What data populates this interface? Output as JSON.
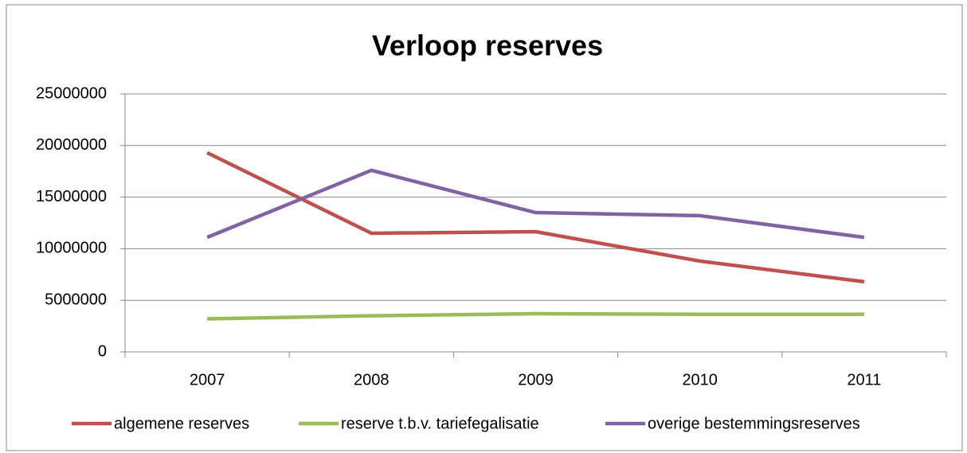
{
  "chart_data": {
    "type": "line",
    "title": "Verloop reserves",
    "categories": [
      "2007",
      "2008",
      "2009",
      "2010",
      "2011"
    ],
    "series": [
      {
        "name": "algemene reserves",
        "color": "#c0504d",
        "values": [
          19300000,
          11500000,
          11650000,
          8800000,
          6800000
        ]
      },
      {
        "name": "reserve t.b.v. tariefegalisatie",
        "color": "#9bbb59",
        "values": [
          3200000,
          3500000,
          3700000,
          3650000,
          3650000
        ]
      },
      {
        "name": "overige bestemmingsreserves",
        "color": "#8064a2",
        "values": [
          11100000,
          17600000,
          13500000,
          13200000,
          11100000
        ]
      }
    ],
    "ylim": [
      0,
      25000000
    ],
    "yticks": [
      0,
      5000000,
      10000000,
      15000000,
      20000000,
      25000000
    ],
    "grid": true,
    "legend": "bottom"
  }
}
